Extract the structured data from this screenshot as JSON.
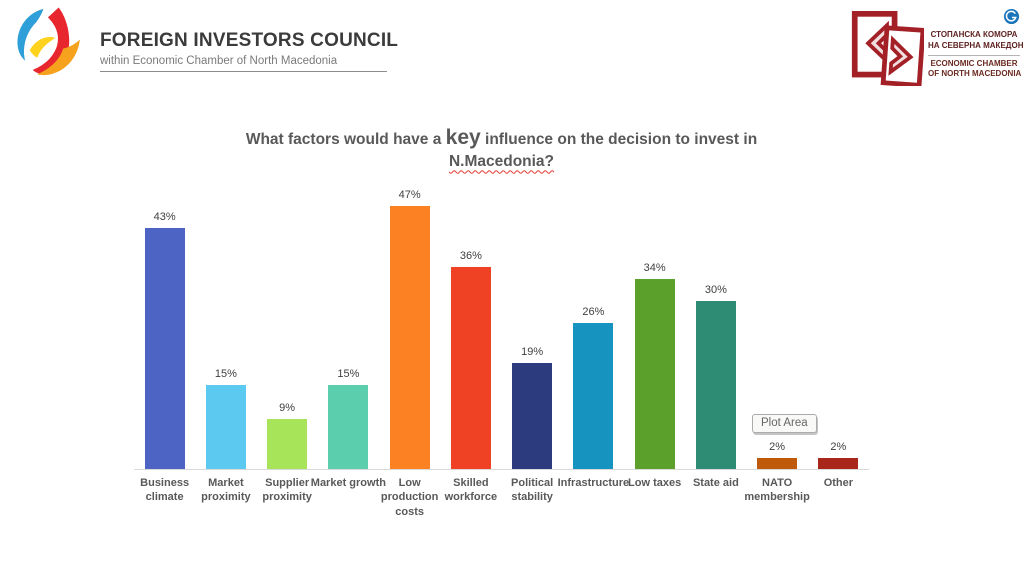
{
  "header": {
    "fic_logo": {
      "title": "FOREIGN INVESTORS COUNCIL",
      "subtitle": "within Economic Chamber of North Macedonia"
    },
    "chamber_logo": {
      "mk_line1": "СТОПАНСКА КОМОРА",
      "mk_line2": "НА СЕВЕРНА МАКЕДОНИЈА",
      "en_line1": "ECONOMIC CHAMBER",
      "en_line2": "OF NORTH MACEDONIA"
    }
  },
  "chart_title": {
    "line1_before": "What factors would have a",
    "line1_emphasis": "key",
    "line1_after": "influence on the decision to invest in",
    "line2": "N.Macedonia?"
  },
  "tooltip": {
    "label": "Plot Area"
  },
  "chart_data": {
    "type": "bar",
    "title": "What factors would have a key influence on the decision to invest in N.Macedonia?",
    "categories": [
      "Business climate",
      "Market proximity",
      "Supplier proximity",
      "Market growth",
      "Low production costs",
      "Skilled workforce",
      "Political stability",
      "Infrastructure",
      "Low taxes",
      "State aid",
      "NATO membership",
      "Other"
    ],
    "category_display": [
      "Business\nclimate",
      "Market\nproximity",
      "Supplier\nproximity",
      "Market growth",
      "Low\nproduction\ncosts",
      "Skilled\nworkforce",
      "Political\nstability",
      "Infrastructure",
      "Low taxes",
      "State aid",
      "NATO\nmembership",
      "Other"
    ],
    "values": [
      43,
      15,
      9,
      15,
      47,
      36,
      19,
      26,
      34,
      30,
      2,
      2
    ],
    "value_labels": [
      "43%",
      "15%",
      "9%",
      "15%",
      "47%",
      "36%",
      "19%",
      "26%",
      "34%",
      "30%",
      "2%",
      "2%"
    ],
    "bar_colors": [
      "#4D64C4",
      "#5CC9F0",
      "#A7E45A",
      "#5BCFAD",
      "#FB8122",
      "#EF4123",
      "#2C3B7E",
      "#1793BF",
      "#5CA02C",
      "#2F8C74",
      "#BF5A0B",
      "#A8261A"
    ],
    "xlabel": "",
    "ylabel": "",
    "ylim": [
      0,
      50
    ],
    "grid": false,
    "legend": false,
    "axis_line_color": "#D9D9D9"
  },
  "colors": {
    "title_text": "#595959",
    "category_text": "#595959",
    "value_text": "#404040",
    "fic_title_text": "#3B3B3B",
    "fic_subtitle_text": "#7A7A7A",
    "chamber_red": "#A32026",
    "chamber_text": "#5E2222",
    "fic_blue": "#2E9FD8",
    "fic_red": "#E8262D",
    "fic_orange": "#F6A21D",
    "fic_yellow": "#FFD21E",
    "globe_blue": "#1B75BB"
  }
}
